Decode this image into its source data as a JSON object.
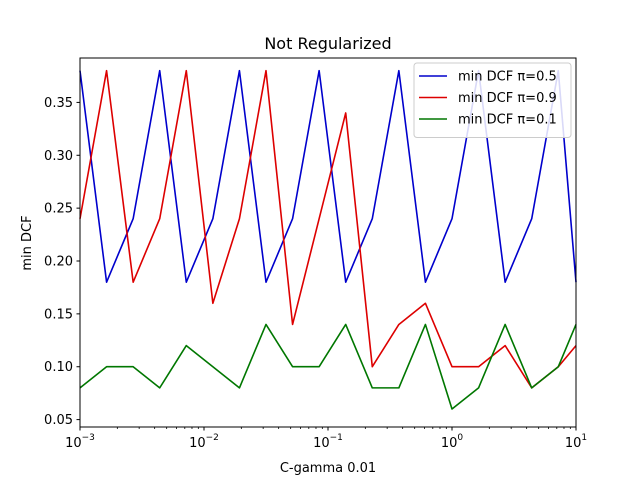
{
  "chart_data": {
    "type": "line",
    "title": "Not Regularized",
    "xlabel": "C-gamma 0.01",
    "ylabel": "min DCF",
    "xscale": "log",
    "xlim": [
      0.001,
      10
    ],
    "ylim": [
      0.043,
      0.392
    ],
    "x_ticks": [
      {
        "value": 0.001,
        "base": "10",
        "exp": "−3"
      },
      {
        "value": 0.01,
        "base": "10",
        "exp": "−2"
      },
      {
        "value": 0.1,
        "base": "10",
        "exp": "−1"
      },
      {
        "value": 1,
        "base": "10",
        "exp": "0"
      },
      {
        "value": 10,
        "base": "10",
        "exp": "1"
      }
    ],
    "y_ticks": [
      "0.05",
      "0.10",
      "0.15",
      "0.20",
      "0.25",
      "0.30",
      "0.35"
    ],
    "legend_position": "top-right",
    "grid": false,
    "x": [
      0.001,
      0.001638,
      0.002683,
      0.004394,
      0.007197,
      0.011788,
      0.019307,
      0.031623,
      0.051795,
      0.084834,
      0.13895,
      0.227585,
      0.372759,
      0.61054,
      1.0,
      1.637894,
      2.682696,
      4.393971,
      7.196857,
      10.0
    ],
    "series": [
      {
        "name": "min DCF π=0.5",
        "color": "#0000cc",
        "values": [
          0.38,
          0.18,
          0.24,
          0.38,
          0.18,
          0.24,
          0.38,
          0.18,
          0.24,
          0.38,
          0.18,
          0.24,
          0.38,
          0.18,
          0.24,
          0.38,
          0.18,
          0.24,
          0.38,
          0.18
        ]
      },
      {
        "name": "min DCF π=0.9",
        "color": "#dd0000",
        "values": [
          0.24,
          0.38,
          0.18,
          0.24,
          0.38,
          0.16,
          0.24,
          0.38,
          0.14,
          0.24,
          0.34,
          0.1,
          0.14,
          0.16,
          0.1,
          0.1,
          0.12,
          0.08,
          0.1,
          0.12
        ]
      },
      {
        "name": "min DCF π=0.1",
        "color": "#007700",
        "values": [
          0.08,
          0.1,
          0.1,
          0.08,
          0.12,
          0.1,
          0.08,
          0.14,
          0.1,
          0.1,
          0.14,
          0.08,
          0.08,
          0.14,
          0.06,
          0.08,
          0.14,
          0.08,
          0.1,
          0.14
        ]
      }
    ]
  }
}
